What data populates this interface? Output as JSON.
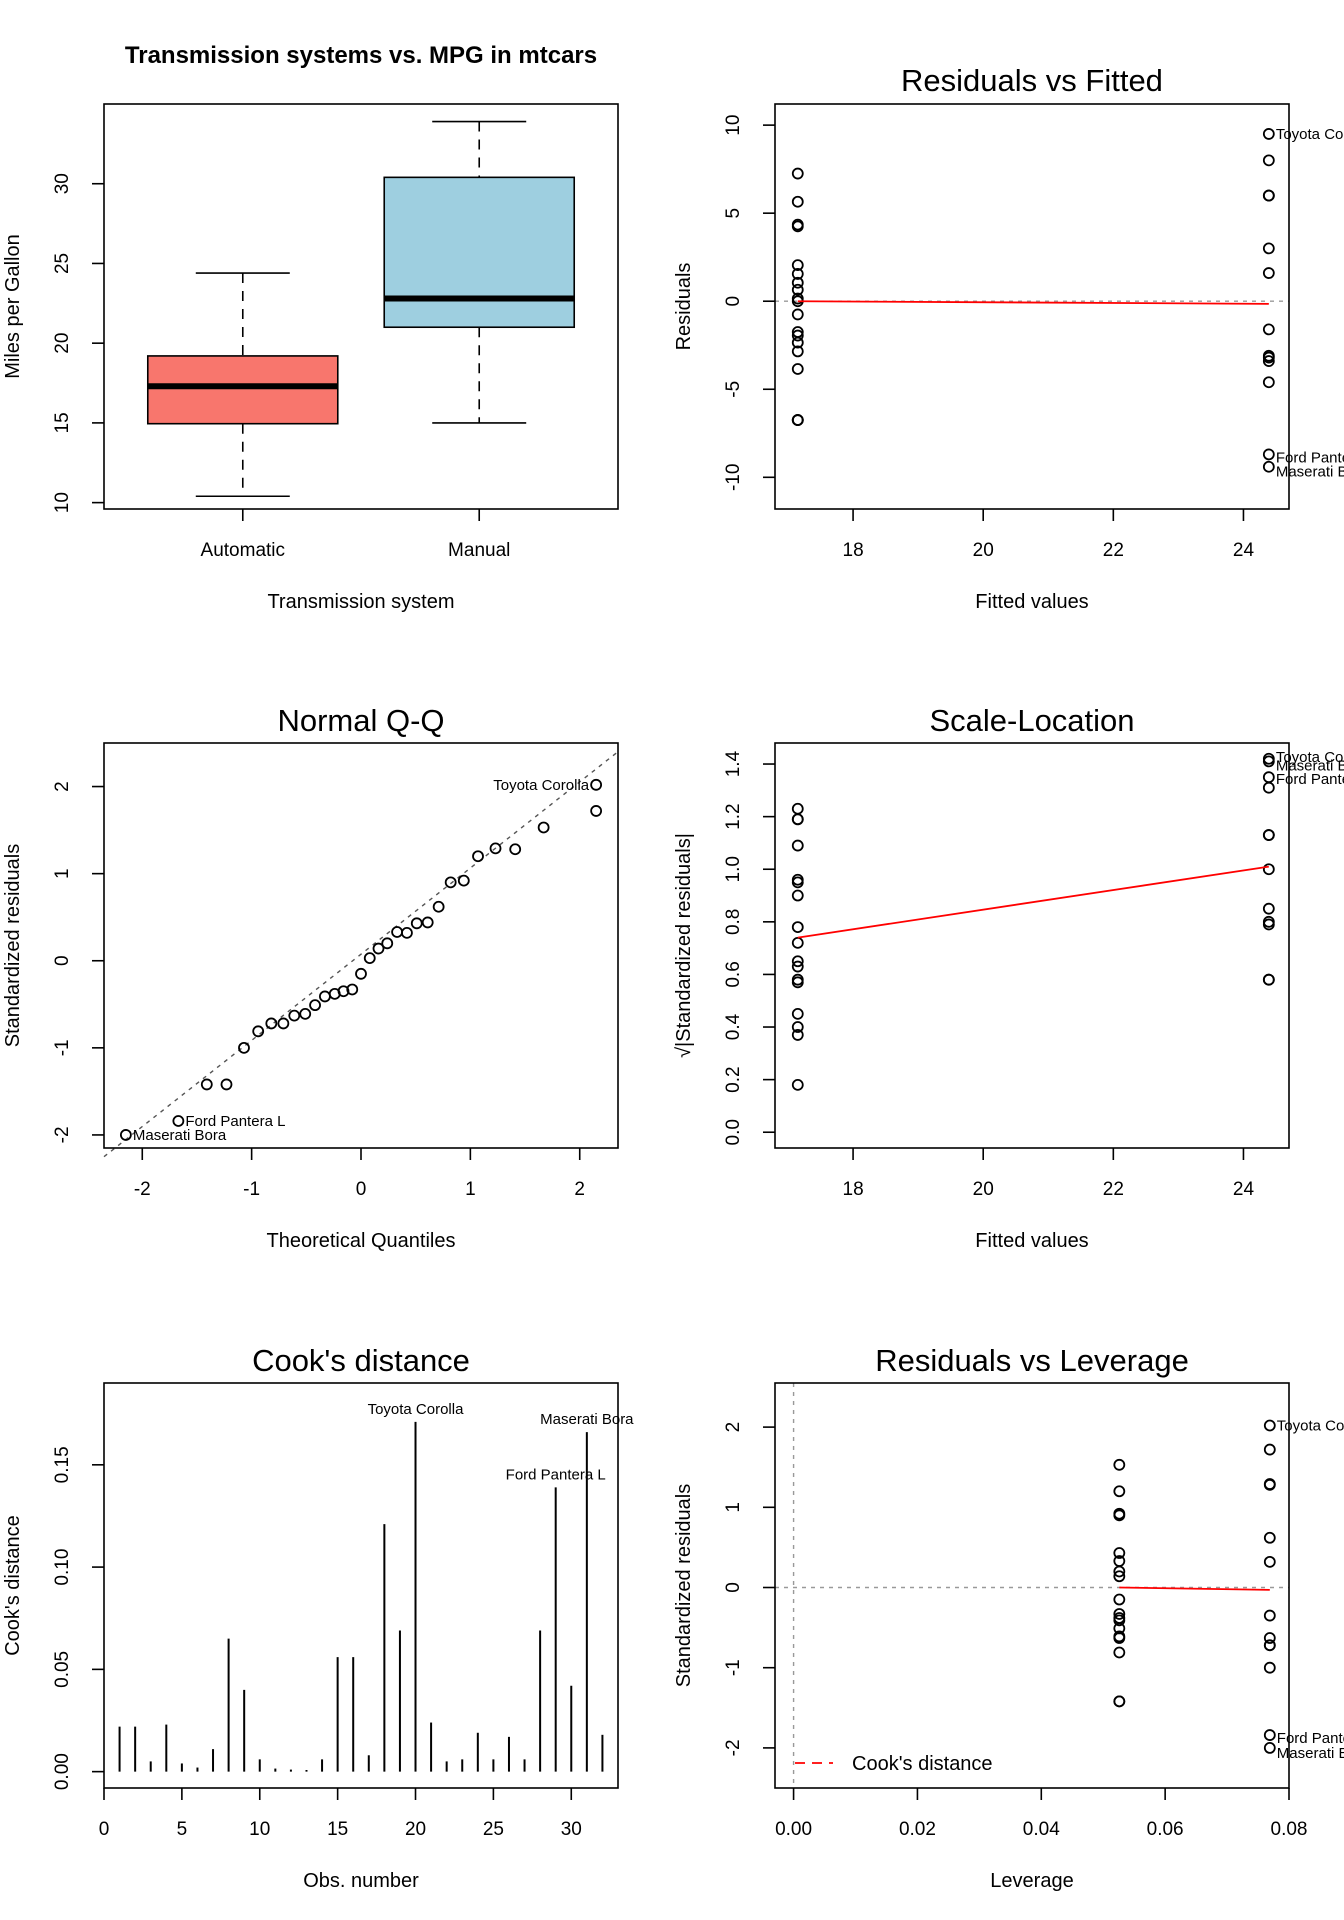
{
  "chart_data": [
    {
      "type": "boxplot",
      "title": "Transmission systems vs. MPG in mtcars",
      "xlabel": "Transmission system",
      "ylabel": "Miles per Gallon",
      "ylim": [
        9.6,
        35.0
      ],
      "yticks": [
        10,
        15,
        20,
        25,
        30
      ],
      "categories": [
        "Automatic",
        "Manual"
      ],
      "boxes": [
        {
          "name": "Automatic",
          "min": 10.4,
          "q1": 14.95,
          "median": 17.3,
          "q3": 19.2,
          "max": 24.4,
          "color": "#F8766D"
        },
        {
          "name": "Manual",
          "min": 15.0,
          "q1": 21.0,
          "median": 22.8,
          "q3": 30.4,
          "max": 33.9,
          "color": "#9ECFE0"
        }
      ]
    },
    {
      "type": "scatter",
      "title": "Residuals vs Fitted",
      "xlabel": "Fitted values",
      "ylabel": "Residuals",
      "xlim": [
        16.8,
        24.7
      ],
      "ylim": [
        -11.8,
        11.2
      ],
      "xticks": [
        18,
        20,
        22,
        24
      ],
      "yticks": [
        -10,
        -5,
        0,
        5,
        10
      ],
      "groups": [
        {
          "x": 17.15,
          "y": [
            7.25,
            5.65,
            4.35,
            4.25,
            2.05,
            1.55,
            1.05,
            0.65,
            0.15,
            -0.75,
            -1.75,
            -1.95,
            -2.35,
            -2.85,
            -3.85,
            -6.75,
            -6.75,
            -6.75,
            0.0
          ]
        },
        {
          "x": 24.39,
          "y": [
            9.5,
            8.0,
            6.0,
            6.0,
            3.0,
            1.6,
            -1.6,
            -3.1,
            -3.4,
            -4.6,
            -8.7,
            -9.4,
            -3.2
          ]
        }
      ],
      "labels": [
        {
          "text": "Toyota Corolla",
          "x": 24.39,
          "y": 9.5
        },
        {
          "text": "Ford Pantera L",
          "x": 24.39,
          "y": -8.7
        },
        {
          "text": "Maserati Bora",
          "x": 24.39,
          "y": -9.4
        }
      ],
      "smooth_line": [
        {
          "x": 17.15,
          "y": 0.0
        },
        {
          "x": 24.39,
          "y": -0.15
        }
      ],
      "reference_line": 0,
      "line_color": "#FF0000"
    },
    {
      "type": "scatter",
      "title": "Normal Q-Q",
      "xlabel": "Theoretical Quantiles",
      "ylabel": "Standardized residuals",
      "xlim": [
        -2.35,
        2.35
      ],
      "ylim": [
        -2.15,
        2.5
      ],
      "xticks": [
        -2,
        -1,
        0,
        1,
        2
      ],
      "yticks": [
        -2,
        -1,
        0,
        1,
        2
      ],
      "points": [
        [
          -2.15,
          -2.0
        ],
        [
          -1.67,
          -1.84
        ],
        [
          -1.41,
          -1.42
        ],
        [
          -1.23,
          -1.42
        ],
        [
          -1.07,
          -1.0
        ],
        [
          -0.94,
          -0.81
        ],
        [
          -0.82,
          -0.72
        ],
        [
          -0.71,
          -0.72
        ],
        [
          -0.61,
          -0.63
        ],
        [
          -0.51,
          -0.61
        ],
        [
          -0.42,
          -0.51
        ],
        [
          -0.33,
          -0.41
        ],
        [
          -0.24,
          -0.38
        ],
        [
          -0.16,
          -0.35
        ],
        [
          -0.08,
          -0.33
        ],
        [
          0.0,
          -0.15
        ],
        [
          0.08,
          0.03
        ],
        [
          0.16,
          0.14
        ],
        [
          0.24,
          0.2
        ],
        [
          0.33,
          0.33
        ],
        [
          0.42,
          0.32
        ],
        [
          0.51,
          0.43
        ],
        [
          0.61,
          0.44
        ],
        [
          0.71,
          0.62
        ],
        [
          0.82,
          0.9
        ],
        [
          0.94,
          0.92
        ],
        [
          1.07,
          1.2
        ],
        [
          1.23,
          1.29
        ],
        [
          1.41,
          1.28
        ],
        [
          1.67,
          1.53
        ],
        [
          2.15,
          1.72
        ],
        [
          2.15,
          2.02
        ]
      ],
      "labels": [
        {
          "text": "Toyota Corolla",
          "x": 2.15,
          "y": 2.02
        },
        {
          "text": "Ford Pantera L",
          "x": -1.67,
          "y": -1.84
        },
        {
          "text": "Maserati Bora",
          "x": -2.15,
          "y": -2.0
        }
      ],
      "reference_line": [
        {
          "x": -2.35,
          "y": -2.25
        },
        {
          "x": 2.35,
          "y": 2.4
        }
      ]
    },
    {
      "type": "scatter",
      "title": "Scale-Location",
      "xlabel": "Fitted values",
      "ylabel": "√|Standardized residuals|",
      "xlim": [
        16.8,
        24.7
      ],
      "ylim": [
        -0.06,
        1.48
      ],
      "xticks": [
        18,
        20,
        22,
        24
      ],
      "yticks": [
        0.0,
        0.2,
        0.4,
        0.6,
        0.8,
        1.0,
        1.2,
        1.4
      ],
      "groups": [
        {
          "x": 17.15,
          "y": [
            1.23,
            1.19,
            1.19,
            1.09,
            0.96,
            0.95,
            0.9,
            0.78,
            0.72,
            0.65,
            0.63,
            0.58,
            0.57,
            0.45,
            0.4,
            0.37,
            0.18
          ]
        },
        {
          "x": 24.39,
          "y": [
            1.42,
            1.41,
            1.35,
            1.31,
            1.13,
            1.13,
            1.0,
            0.85,
            0.8,
            0.79,
            0.58,
            0.58
          ]
        }
      ],
      "labels": [
        {
          "text": "Toyota Corolla",
          "x": 24.39,
          "y": 1.42
        },
        {
          "text": "Maserati Bora",
          "x": 24.39,
          "y": 1.41
        },
        {
          "text": "Ford Pantera L",
          "x": 24.39,
          "y": 1.35
        }
      ],
      "smooth_line": [
        {
          "x": 17.15,
          "y": 0.74
        },
        {
          "x": 24.39,
          "y": 1.01
        }
      ],
      "line_color": "#FF0000"
    },
    {
      "type": "bar",
      "title": "Cook's distance",
      "xlabel": "Obs. number",
      "ylabel": "Cook's distance",
      "xlim": [
        0.0,
        33.0
      ],
      "ylim": [
        -0.008,
        0.19
      ],
      "xticks": [
        0,
        5,
        10,
        15,
        20,
        25,
        30
      ],
      "yticks": [
        0.0,
        0.05,
        0.1,
        0.15
      ],
      "categories": [
        1,
        2,
        3,
        4,
        5,
        6,
        7,
        8,
        9,
        10,
        11,
        12,
        13,
        14,
        15,
        16,
        17,
        18,
        19,
        20,
        21,
        22,
        23,
        24,
        25,
        26,
        27,
        28,
        29,
        30,
        31,
        32
      ],
      "values": [
        0.022,
        0.022,
        0.005,
        0.023,
        0.004,
        0.002,
        0.011,
        0.065,
        0.04,
        0.006,
        0.0015,
        0.001,
        0.0008,
        0.006,
        0.056,
        0.056,
        0.008,
        0.121,
        0.069,
        0.171,
        0.024,
        0.005,
        0.006,
        0.019,
        0.006,
        0.017,
        0.006,
        0.069,
        0.139,
        0.042,
        0.166,
        0.018
      ],
      "labels": [
        {
          "text": "Toyota Corolla",
          "x": 20,
          "y": 0.171
        },
        {
          "text": "Maserati Bora",
          "x": 31,
          "y": 0.166
        },
        {
          "text": "Ford Pantera L",
          "x": 29,
          "y": 0.139
        }
      ]
    },
    {
      "type": "scatter",
      "title": "Residuals vs Leverage",
      "xlabel": "Leverage",
      "ylabel": "Standardized residuals",
      "xlim": [
        -0.003,
        0.08
      ],
      "ylim": [
        -2.5,
        2.55
      ],
      "xticks": [
        0.0,
        0.02,
        0.04,
        0.06,
        0.08
      ],
      "yticks": [
        -2,
        -1,
        0,
        1,
        2
      ],
      "groups": [
        {
          "x": 0.0526,
          "y": [
            1.53,
            1.2,
            0.92,
            0.9,
            0.43,
            0.33,
            0.2,
            0.14,
            -0.15,
            -0.33,
            -0.38,
            -0.41,
            -0.51,
            -0.61,
            -0.63,
            -0.81,
            -1.42,
            -1.42
          ]
        },
        {
          "x": 0.0769,
          "y": [
            2.02,
            1.72,
            1.29,
            1.28,
            0.62,
            0.32,
            -0.35,
            -0.63,
            -0.72,
            -0.72,
            -1.0,
            -1.84,
            -2.0
          ]
        }
      ],
      "labels": [
        {
          "text": "Toyota Corolla",
          "x": 0.0769,
          "y": 2.02
        },
        {
          "text": "Ford Pantera L",
          "x": 0.0769,
          "y": -1.84
        },
        {
          "text": "Maserati Bora",
          "x": 0.0769,
          "y": -2.0
        }
      ],
      "smooth_line": [
        {
          "x": 0.0526,
          "y": 0.0
        },
        {
          "x": 0.0769,
          "y": -0.03
        }
      ],
      "line_color": "#FF0000",
      "legend": "Cook's distance",
      "legend_position": "bottom-left"
    }
  ]
}
